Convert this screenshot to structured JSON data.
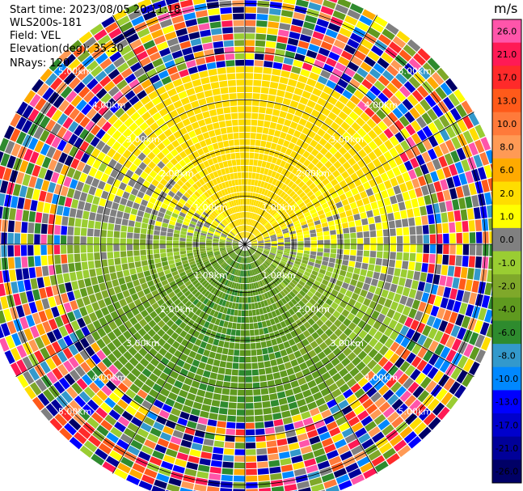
{
  "header": {
    "start_time": "Start time: 2023/08/05 20:11:18",
    "instrument": "WLS200s-181",
    "field": "Field: VEL",
    "elevation": "Elevation(deg): 35.30",
    "nrays": "NRays: 120"
  },
  "chart_data": {
    "type": "heatmap",
    "projection": "polar-ppi",
    "field": "VEL",
    "nrays": 120,
    "range_rings_km": [
      1.0,
      2.0,
      3.0,
      4.0,
      5.0
    ],
    "ring_labels": [
      "1.00km",
      "2.00km",
      "3.00km",
      "4.00km",
      "5.00km"
    ],
    "max_range_km": 5.5,
    "spokes_deg": [
      0,
      30,
      60,
      90,
      120,
      150,
      180,
      210,
      240,
      270,
      300,
      330
    ],
    "colorbar": {
      "unit": "m/s",
      "ticks": [
        "26.0",
        "21.0",
        "17.0",
        "13.0",
        "10.0",
        "8.0",
        "6.0",
        "2.0",
        "1.0",
        "0.0",
        "-1.0",
        "-2.0",
        "-4.0",
        "-6.0",
        "-8.0",
        "-10.0",
        "-13.0",
        "-17.0",
        "-21.0",
        "-26.0",
        "-30.0"
      ],
      "colors": [
        "#ff55aa",
        "#ff1a55",
        "#ff2a2a",
        "#ff5a1a",
        "#ff7a3a",
        "#ff9a55",
        "#ffaa00",
        "#ffdd00",
        "#ffff00",
        "#808080",
        "#9acd32",
        "#7fa82a",
        "#5f9a1f",
        "#2e8b2e",
        "#3399cc",
        "#0088ff",
        "#0000ff",
        "#0000cc",
        "#000099",
        "#000066"
      ],
      "range": [
        -30,
        26
      ]
    }
  }
}
